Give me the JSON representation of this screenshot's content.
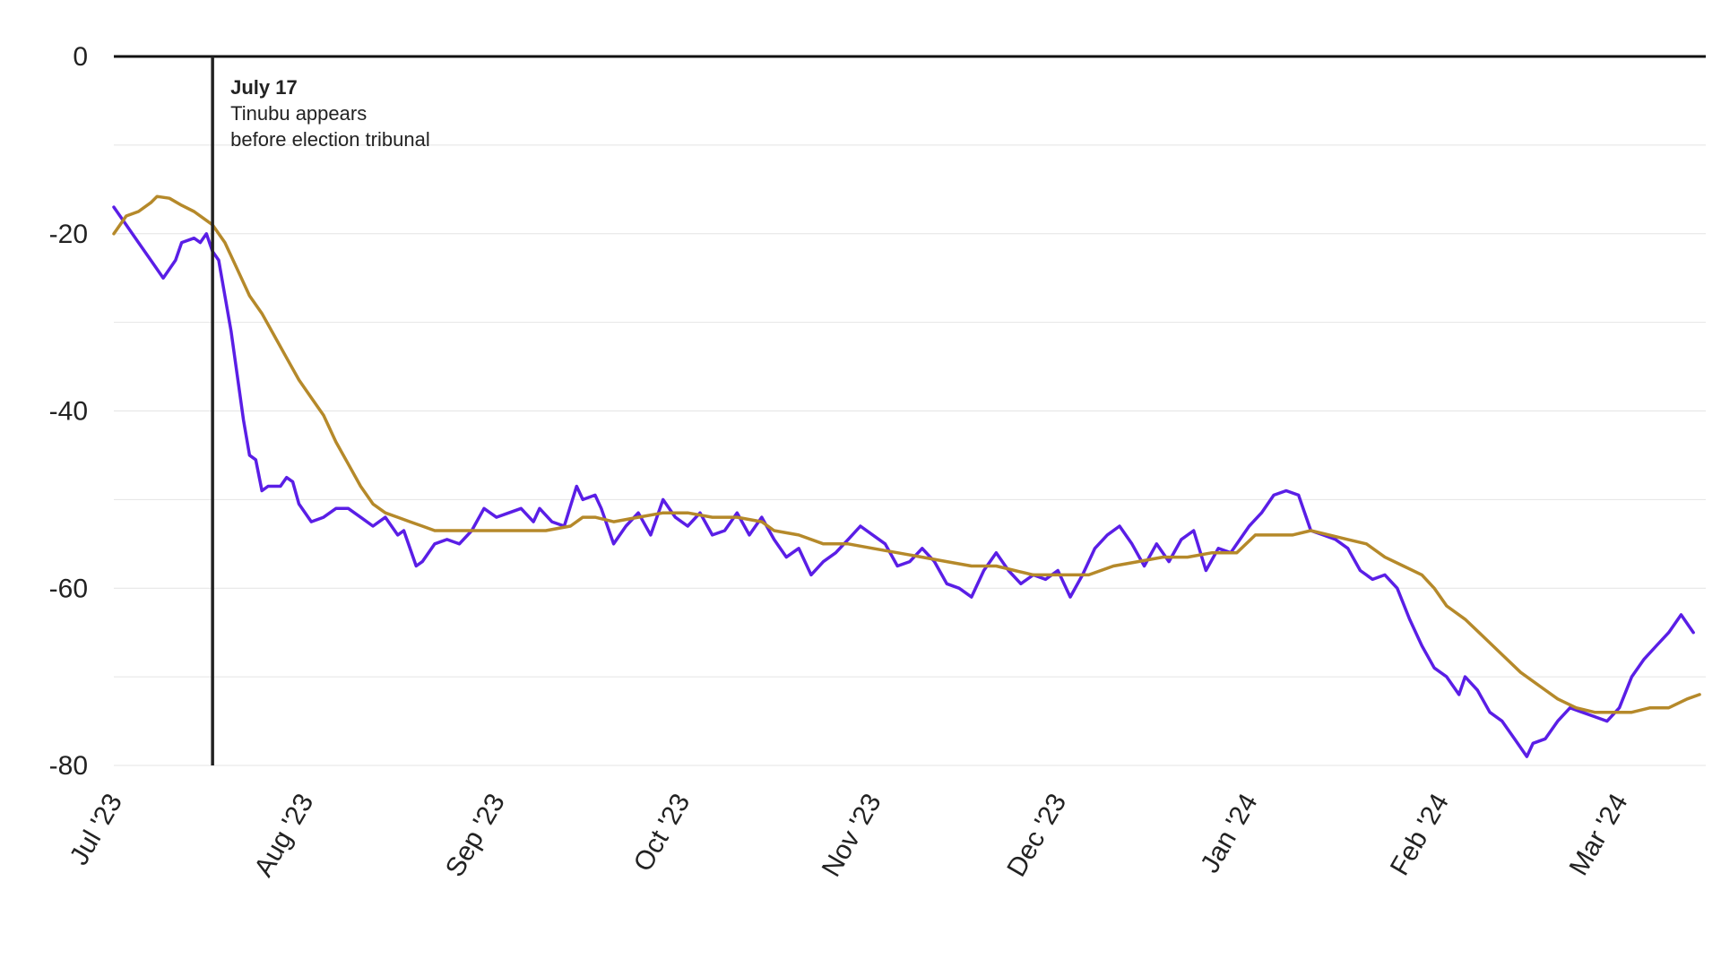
{
  "chart_data": {
    "type": "line",
    "title": "",
    "xlabel": "",
    "ylabel": "",
    "x_axis": {
      "type": "date",
      "range": [
        "2023-07-01",
        "2024-03-15"
      ],
      "ticks": [
        {
          "label": "Jul '23",
          "date": "2023-07-01"
        },
        {
          "label": "Aug '23",
          "date": "2023-08-01"
        },
        {
          "label": "Sep '23",
          "date": "2023-09-01"
        },
        {
          "label": "Oct '23",
          "date": "2023-10-01"
        },
        {
          "label": "Nov '23",
          "date": "2023-11-01"
        },
        {
          "label": "Dec '23",
          "date": "2023-12-01"
        },
        {
          "label": "Jan '24",
          "date": "2024-01-01"
        },
        {
          "label": "Feb '24",
          "date": "2024-02-01"
        },
        {
          "label": "Mar '24",
          "date": "2024-03-01"
        }
      ]
    },
    "y_axis": {
      "range": [
        -80,
        0
      ],
      "ticks": [
        {
          "label": "0",
          "value": 0
        },
        {
          "label": "-20",
          "value": -20
        },
        {
          "label": "-40",
          "value": -40
        },
        {
          "label": "-60",
          "value": -60
        },
        {
          "label": "-80",
          "value": -80
        }
      ],
      "gridlines": [
        -10,
        -20,
        -30,
        -40,
        -50,
        -60,
        -70,
        -80
      ]
    },
    "grid": true,
    "legend": "none",
    "annotation": {
      "date": "2023-07-17",
      "title": "July 17",
      "lines": [
        "Tinubu appears",
        "before election tribunal"
      ]
    },
    "series": [
      {
        "color": "#5a1ee6",
        "points": [
          [
            "2023-07-01",
            -17
          ],
          [
            "2023-07-03",
            -19
          ],
          [
            "2023-07-05",
            -21
          ],
          [
            "2023-07-07",
            -23
          ],
          [
            "2023-07-09",
            -25
          ],
          [
            "2023-07-11",
            -23
          ],
          [
            "2023-07-12",
            -21
          ],
          [
            "2023-07-14",
            -20.5
          ],
          [
            "2023-07-15",
            -21
          ],
          [
            "2023-07-16",
            -20
          ],
          [
            "2023-07-17",
            -22
          ],
          [
            "2023-07-18",
            -23
          ],
          [
            "2023-07-19",
            -27
          ],
          [
            "2023-07-20",
            -31
          ],
          [
            "2023-07-21",
            -36
          ],
          [
            "2023-07-22",
            -41
          ],
          [
            "2023-07-23",
            -45
          ],
          [
            "2023-07-24",
            -45.5
          ],
          [
            "2023-07-25",
            -49
          ],
          [
            "2023-07-26",
            -48.5
          ],
          [
            "2023-07-28",
            -48.5
          ],
          [
            "2023-07-29",
            -47.5
          ],
          [
            "2023-07-30",
            -48
          ],
          [
            "2023-07-31",
            -50.5
          ],
          [
            "2023-08-02",
            -52.5
          ],
          [
            "2023-08-04",
            -52
          ],
          [
            "2023-08-06",
            -51
          ],
          [
            "2023-08-08",
            -51
          ],
          [
            "2023-08-10",
            -52
          ],
          [
            "2023-08-12",
            -53
          ],
          [
            "2023-08-14",
            -52
          ],
          [
            "2023-08-16",
            -54
          ],
          [
            "2023-08-17",
            -53.5
          ],
          [
            "2023-08-19",
            -57.5
          ],
          [
            "2023-08-20",
            -57
          ],
          [
            "2023-08-22",
            -55
          ],
          [
            "2023-08-24",
            -54.5
          ],
          [
            "2023-08-26",
            -55
          ],
          [
            "2023-08-28",
            -53.5
          ],
          [
            "2023-08-30",
            -51
          ],
          [
            "2023-09-01",
            -52
          ],
          [
            "2023-09-03",
            -51.5
          ],
          [
            "2023-09-05",
            -51
          ],
          [
            "2023-09-07",
            -52.5
          ],
          [
            "2023-09-08",
            -51
          ],
          [
            "2023-09-10",
            -52.5
          ],
          [
            "2023-09-12",
            -53
          ],
          [
            "2023-09-14",
            -48.5
          ],
          [
            "2023-09-15",
            -50
          ],
          [
            "2023-09-17",
            -49.5
          ],
          [
            "2023-09-18",
            -51
          ],
          [
            "2023-09-20",
            -55
          ],
          [
            "2023-09-22",
            -53
          ],
          [
            "2023-09-24",
            -51.5
          ],
          [
            "2023-09-26",
            -54
          ],
          [
            "2023-09-28",
            -50
          ],
          [
            "2023-09-30",
            -52
          ],
          [
            "2023-10-02",
            -53
          ],
          [
            "2023-10-04",
            -51.5
          ],
          [
            "2023-10-06",
            -54
          ],
          [
            "2023-10-08",
            -53.5
          ],
          [
            "2023-10-10",
            -51.5
          ],
          [
            "2023-10-12",
            -54
          ],
          [
            "2023-10-14",
            -52
          ],
          [
            "2023-10-16",
            -54.5
          ],
          [
            "2023-10-18",
            -56.5
          ],
          [
            "2023-10-20",
            -55.5
          ],
          [
            "2023-10-22",
            -58.5
          ],
          [
            "2023-10-24",
            -57
          ],
          [
            "2023-10-26",
            -56
          ],
          [
            "2023-10-28",
            -54.5
          ],
          [
            "2023-10-30",
            -53
          ],
          [
            "2023-11-01",
            -54
          ],
          [
            "2023-11-03",
            -55
          ],
          [
            "2023-11-05",
            -57.5
          ],
          [
            "2023-11-07",
            -57
          ],
          [
            "2023-11-09",
            -55.5
          ],
          [
            "2023-11-11",
            -57
          ],
          [
            "2023-11-13",
            -59.5
          ],
          [
            "2023-11-15",
            -60
          ],
          [
            "2023-11-17",
            -61
          ],
          [
            "2023-11-19",
            -58
          ],
          [
            "2023-11-21",
            -56
          ],
          [
            "2023-11-23",
            -58
          ],
          [
            "2023-11-25",
            -59.5
          ],
          [
            "2023-11-27",
            -58.5
          ],
          [
            "2023-11-29",
            -59
          ],
          [
            "2023-12-01",
            -58
          ],
          [
            "2023-12-03",
            -61
          ],
          [
            "2023-12-05",
            -58.5
          ],
          [
            "2023-12-07",
            -55.5
          ],
          [
            "2023-12-09",
            -54
          ],
          [
            "2023-12-11",
            -53
          ],
          [
            "2023-12-13",
            -55
          ],
          [
            "2023-12-15",
            -57.5
          ],
          [
            "2023-12-17",
            -55
          ],
          [
            "2023-12-19",
            -57
          ],
          [
            "2023-12-21",
            -54.5
          ],
          [
            "2023-12-23",
            -53.5
          ],
          [
            "2023-12-25",
            -58
          ],
          [
            "2023-12-27",
            -55.5
          ],
          [
            "2023-12-29",
            -56
          ],
          [
            "2024-01-01",
            -53
          ],
          [
            "2024-01-03",
            -51.5
          ],
          [
            "2024-01-05",
            -49.5
          ],
          [
            "2024-01-07",
            -49
          ],
          [
            "2024-01-09",
            -49.5
          ],
          [
            "2024-01-11",
            -53.5
          ],
          [
            "2024-01-13",
            -54
          ],
          [
            "2024-01-15",
            -54.5
          ],
          [
            "2024-01-17",
            -55.5
          ],
          [
            "2024-01-19",
            -58
          ],
          [
            "2024-01-21",
            -59
          ],
          [
            "2024-01-23",
            -58.5
          ],
          [
            "2024-01-25",
            -60
          ],
          [
            "2024-01-27",
            -63.5
          ],
          [
            "2024-01-29",
            -66.5
          ],
          [
            "2024-01-31",
            -69
          ],
          [
            "2024-02-02",
            -70
          ],
          [
            "2024-02-04",
            -72
          ],
          [
            "2024-02-05",
            -70
          ],
          [
            "2024-02-07",
            -71.5
          ],
          [
            "2024-02-09",
            -74
          ],
          [
            "2024-02-11",
            -75
          ],
          [
            "2024-02-13",
            -77
          ],
          [
            "2024-02-15",
            -79
          ],
          [
            "2024-02-16",
            -77.5
          ],
          [
            "2024-02-18",
            -77
          ],
          [
            "2024-02-20",
            -75
          ],
          [
            "2024-02-22",
            -73.5
          ],
          [
            "2024-02-24",
            -74
          ],
          [
            "2024-02-26",
            -74.5
          ],
          [
            "2024-02-28",
            -75
          ],
          [
            "2024-03-01",
            -73.5
          ],
          [
            "2024-03-03",
            -70
          ],
          [
            "2024-03-05",
            -68
          ],
          [
            "2024-03-07",
            -66.5
          ],
          [
            "2024-03-09",
            -65
          ],
          [
            "2024-03-11",
            -63
          ],
          [
            "2024-03-13",
            -65
          ]
        ]
      },
      {
        "color": "#b5892a",
        "points": [
          [
            "2023-07-01",
            -20
          ],
          [
            "2023-07-03",
            -18
          ],
          [
            "2023-07-05",
            -17.5
          ],
          [
            "2023-07-07",
            -16.5
          ],
          [
            "2023-07-08",
            -15.8
          ],
          [
            "2023-07-10",
            -16
          ],
          [
            "2023-07-12",
            -16.8
          ],
          [
            "2023-07-14",
            -17.5
          ],
          [
            "2023-07-16",
            -18.5
          ],
          [
            "2023-07-17",
            -19
          ],
          [
            "2023-07-19",
            -21
          ],
          [
            "2023-07-21",
            -24
          ],
          [
            "2023-07-23",
            -27
          ],
          [
            "2023-07-25",
            -29
          ],
          [
            "2023-07-27",
            -31.5
          ],
          [
            "2023-07-29",
            -34
          ],
          [
            "2023-07-31",
            -36.5
          ],
          [
            "2023-08-02",
            -38.5
          ],
          [
            "2023-08-04",
            -40.5
          ],
          [
            "2023-08-06",
            -43.5
          ],
          [
            "2023-08-08",
            -46
          ],
          [
            "2023-08-10",
            -48.5
          ],
          [
            "2023-08-12",
            -50.5
          ],
          [
            "2023-08-14",
            -51.5
          ],
          [
            "2023-08-16",
            -52
          ],
          [
            "2023-08-18",
            -52.5
          ],
          [
            "2023-08-20",
            -53
          ],
          [
            "2023-08-22",
            -53.5
          ],
          [
            "2023-08-24",
            -53.5
          ],
          [
            "2023-08-26",
            -53.5
          ],
          [
            "2023-08-28",
            -53.5
          ],
          [
            "2023-08-30",
            -53.5
          ],
          [
            "2023-09-01",
            -53.5
          ],
          [
            "2023-09-05",
            -53.5
          ],
          [
            "2023-09-09",
            -53.5
          ],
          [
            "2023-09-13",
            -53
          ],
          [
            "2023-09-15",
            -52
          ],
          [
            "2023-09-17",
            -52
          ],
          [
            "2023-09-20",
            -52.5
          ],
          [
            "2023-09-24",
            -52
          ],
          [
            "2023-09-28",
            -51.5
          ],
          [
            "2023-10-02",
            -51.5
          ],
          [
            "2023-10-06",
            -52
          ],
          [
            "2023-10-10",
            -52
          ],
          [
            "2023-10-14",
            -52.5
          ],
          [
            "2023-10-16",
            -53.5
          ],
          [
            "2023-10-20",
            -54
          ],
          [
            "2023-10-24",
            -55
          ],
          [
            "2023-10-28",
            -55
          ],
          [
            "2023-11-01",
            -55.5
          ],
          [
            "2023-11-05",
            -56
          ],
          [
            "2023-11-09",
            -56.5
          ],
          [
            "2023-11-13",
            -57
          ],
          [
            "2023-11-17",
            -57.5
          ],
          [
            "2023-11-21",
            -57.5
          ],
          [
            "2023-11-24",
            -58
          ],
          [
            "2023-11-27",
            -58.5
          ],
          [
            "2023-11-30",
            -58.5
          ],
          [
            "2023-12-03",
            -58.5
          ],
          [
            "2023-12-06",
            -58.5
          ],
          [
            "2023-12-10",
            -57.5
          ],
          [
            "2023-12-14",
            -57
          ],
          [
            "2023-12-18",
            -56.5
          ],
          [
            "2023-12-22",
            -56.5
          ],
          [
            "2023-12-26",
            -56
          ],
          [
            "2023-12-30",
            -56
          ],
          [
            "2024-01-02",
            -54
          ],
          [
            "2024-01-05",
            -54
          ],
          [
            "2024-01-08",
            -54
          ],
          [
            "2024-01-11",
            -53.5
          ],
          [
            "2024-01-14",
            -54
          ],
          [
            "2024-01-17",
            -54.5
          ],
          [
            "2024-01-20",
            -55
          ],
          [
            "2024-01-23",
            -56.5
          ],
          [
            "2024-01-26",
            -57.5
          ],
          [
            "2024-01-29",
            -58.5
          ],
          [
            "2024-01-31",
            -60
          ],
          [
            "2024-02-02",
            -62
          ],
          [
            "2024-02-05",
            -63.5
          ],
          [
            "2024-02-08",
            -65.5
          ],
          [
            "2024-02-11",
            -67.5
          ],
          [
            "2024-02-14",
            -69.5
          ],
          [
            "2024-02-17",
            -71
          ],
          [
            "2024-02-20",
            -72.5
          ],
          [
            "2024-02-23",
            -73.5
          ],
          [
            "2024-02-26",
            -74
          ],
          [
            "2024-02-29",
            -74
          ],
          [
            "2024-03-03",
            -74
          ],
          [
            "2024-03-06",
            -73.5
          ],
          [
            "2024-03-09",
            -73.5
          ],
          [
            "2024-03-12",
            -72.5
          ],
          [
            "2024-03-14",
            -72
          ]
        ]
      }
    ]
  }
}
